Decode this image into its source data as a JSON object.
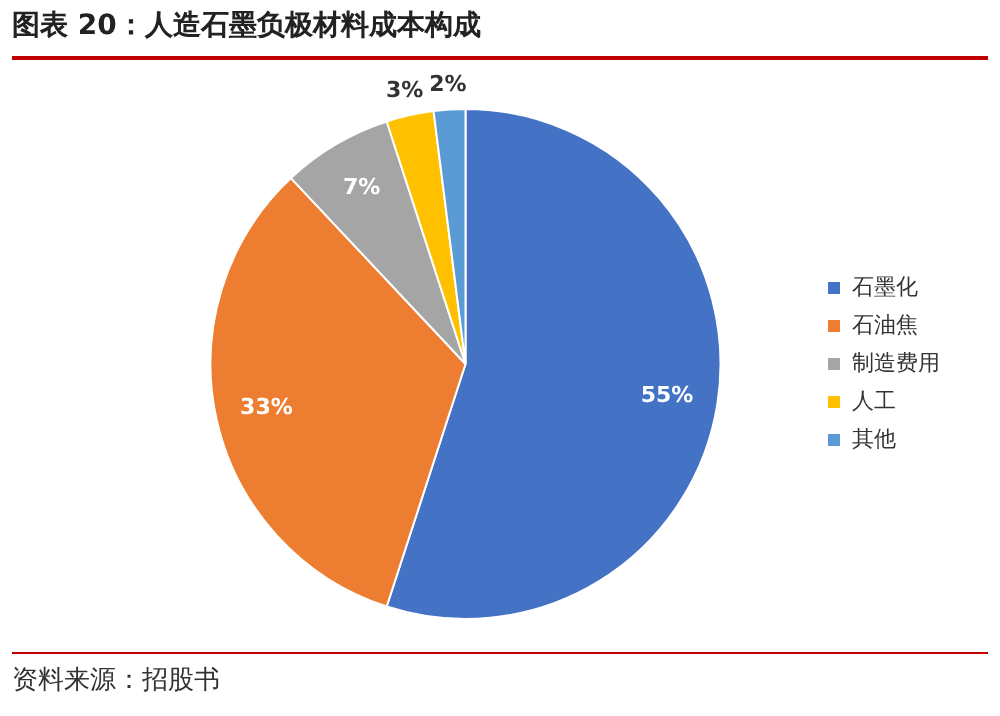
{
  "chart_data": {
    "type": "pie",
    "title": "图表 20：人造石墨负极材料成本构成",
    "categories": [
      "石墨化",
      "石油焦",
      "制造费用",
      "人工",
      "其他"
    ],
    "values": [
      55,
      33,
      7,
      3,
      2
    ],
    "value_labels": [
      "55%",
      "33%",
      "7%",
      "3%",
      "2%"
    ],
    "colors": [
      "#4472c4",
      "#ed7d31",
      "#a5a5a5",
      "#ffc000",
      "#5b9bd5"
    ],
    "legend": "right",
    "annotations": [
      "资料来源：招股书"
    ]
  }
}
